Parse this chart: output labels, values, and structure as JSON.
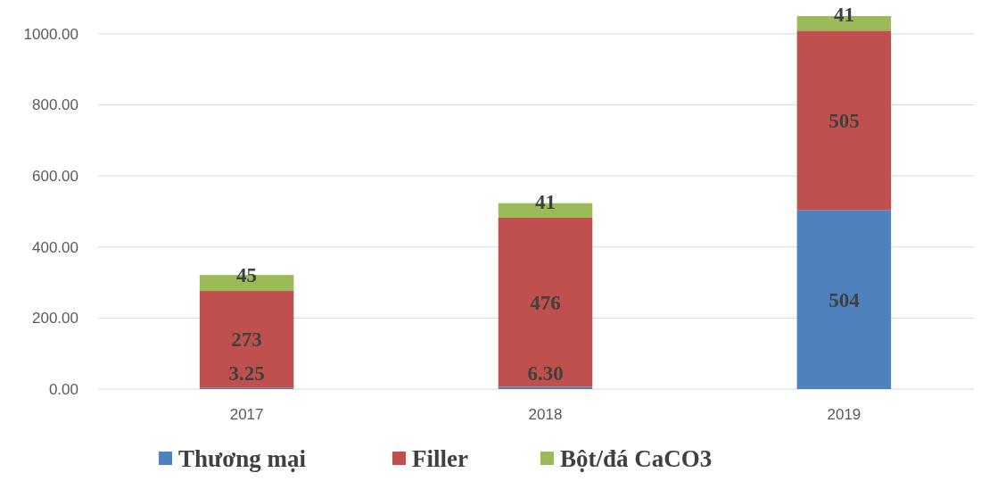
{
  "chart_data": {
    "type": "bar",
    "stacked": true,
    "categories": [
      "2017",
      "2018",
      "2019"
    ],
    "series": [
      {
        "name": "Thương mại",
        "color": "#4f81bd",
        "values": [
          3.25,
          6.3,
          504
        ],
        "value_labels": [
          "3.25",
          "6.30",
          "504"
        ]
      },
      {
        "name": "Filler",
        "color": "#c0504d",
        "values": [
          273,
          476,
          505
        ],
        "value_labels": [
          "273",
          "476",
          "505"
        ]
      },
      {
        "name": "Bột/đá CaCO3",
        "color": "#9bbb59",
        "values": [
          45,
          41,
          41
        ],
        "value_labels": [
          "45",
          "41",
          "41"
        ]
      }
    ],
    "ylim": [
      0,
      1050
    ],
    "yticks": [
      {
        "value": 0,
        "label": "0.00"
      },
      {
        "value": 200,
        "label": "200.00"
      },
      {
        "value": 400,
        "label": "400.00"
      },
      {
        "value": 600,
        "label": "600.00"
      },
      {
        "value": 800,
        "label": "800.00"
      },
      {
        "value": 1000,
        "label": "1000.00"
      }
    ],
    "grid": "y",
    "legend": "bottom"
  }
}
